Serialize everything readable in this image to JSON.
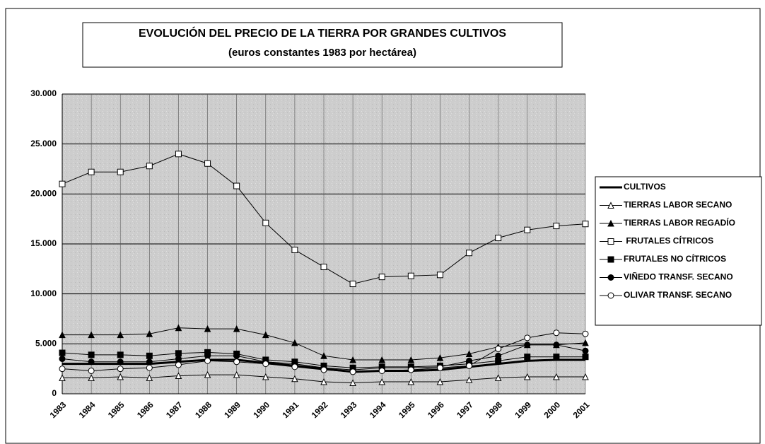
{
  "chart_data": {
    "type": "line",
    "title": "EVOLUCIÓN DEL PRECIO DE LA TIERRA POR GRANDES CULTIVOS",
    "subtitle": "(euros constantes 1983 por hectárea)",
    "categories": [
      "1983",
      "1984",
      "1985",
      "1986",
      "1987",
      "1988",
      "1989",
      "1990",
      "1991",
      "1992",
      "1993",
      "1994",
      "1995",
      "1996",
      "1997",
      "1998",
      "1999",
      "2000",
      "2001"
    ],
    "ylim": [
      0,
      30000
    ],
    "yticks": [
      0,
      {
        "value": 5000,
        "label": "5.000"
      },
      {
        "value": 10000,
        "label": "10.000"
      },
      {
        "value": 15000,
        "label": "15.000"
      },
      {
        "value": 20000,
        "label": "20.000"
      },
      {
        "value": 25000,
        "label": "25.000"
      },
      {
        "value": 30000,
        "label": "30.000"
      }
    ],
    "grid": true,
    "legend": "right",
    "series": [
      {
        "name": "CULTIVOS",
        "color": "#000000",
        "marker": "none",
        "values": [
          3000,
          3000,
          3000,
          3000,
          3200,
          3400,
          3400,
          3100,
          2800,
          2500,
          2200,
          2300,
          2300,
          2400,
          2700,
          3000,
          3300,
          3400,
          3400
        ]
      },
      {
        "name": "TIERRAS LABOR SECANO",
        "color": "#000000",
        "marker": "triangle-open",
        "values": [
          1600,
          1600,
          1700,
          1600,
          1800,
          1900,
          1900,
          1700,
          1500,
          1200,
          1100,
          1200,
          1200,
          1200,
          1400,
          1600,
          1700,
          1700,
          1700
        ]
      },
      {
        "name": "TIERRAS LABOR REGADÍO",
        "color": "#000000",
        "marker": "triangle",
        "values": [
          5900,
          5900,
          5900,
          6000,
          6600,
          6500,
          6500,
          5900,
          5100,
          3800,
          3400,
          3400,
          3400,
          3600,
          4000,
          4700,
          4900,
          4900,
          5100
        ]
      },
      {
        "name": " FRUTALES CÍTRICOS",
        "color": "#000000",
        "marker": "square-open",
        "values": [
          21000,
          22200,
          22200,
          22800,
          24000,
          23050,
          20800,
          17100,
          14400,
          12700,
          11000,
          11700,
          11800,
          11900,
          14100,
          15600,
          16400,
          16800,
          17000
        ]
      },
      {
        "name": "FRUTALES NO CÍTRICOS",
        "color": "#000000",
        "marker": "square",
        "values": [
          4100,
          3900,
          3900,
          3800,
          4050,
          4150,
          4000,
          3400,
          3200,
          2800,
          2600,
          2700,
          2700,
          2800,
          3000,
          3300,
          3700,
          3700,
          3700
        ]
      },
      {
        "name": "VIÑEDO TRANSF. SECANO",
        "color": "#000000",
        "marker": "circle",
        "values": [
          3500,
          3200,
          3200,
          3200,
          3500,
          3800,
          3800,
          3200,
          3000,
          2600,
          2400,
          2600,
          2600,
          2700,
          3300,
          3800,
          4900,
          4900,
          4300
        ]
      },
      {
        "name": "OLIVAR TRANSF. SECANO",
        "color": "#000000",
        "marker": "circle-open",
        "values": [
          2500,
          2300,
          2500,
          2600,
          2900,
          3300,
          3200,
          3000,
          2700,
          2400,
          2200,
          2300,
          2400,
          2600,
          2800,
          4500,
          5600,
          6100,
          6000
        ]
      }
    ]
  }
}
